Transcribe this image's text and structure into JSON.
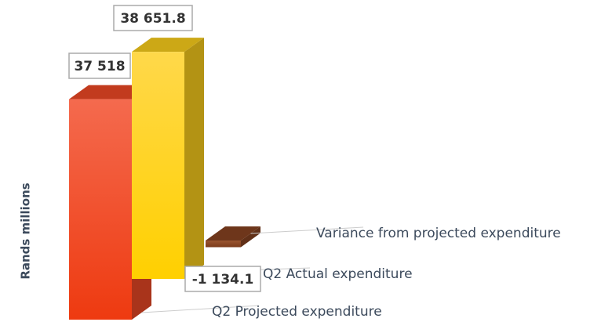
{
  "chart_data": {
    "type": "bar3d",
    "y_axis_label": "Rands millions",
    "categories": [
      "Q2 Projected expenditure",
      "Q2 Actual expenditure",
      "Variance from projected expenditure"
    ],
    "values": [
      37518,
      38651.8,
      -1134.1
    ],
    "value_labels": [
      "37 518",
      "38 651.8",
      "-1 134.1"
    ],
    "colors": [
      "#f24a26",
      "#ffd21c",
      "#8a4422"
    ],
    "ylim": [
      0,
      40000
    ]
  }
}
